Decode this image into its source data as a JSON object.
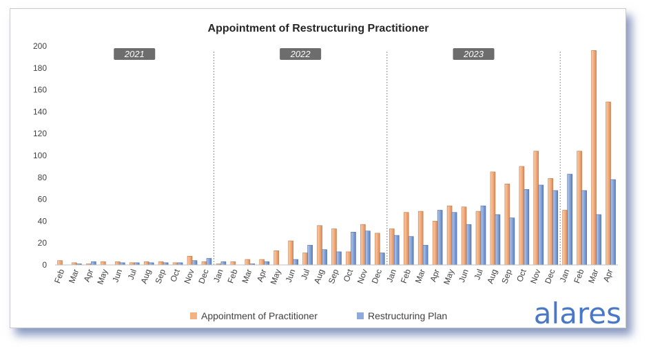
{
  "chart_data": {
    "type": "bar",
    "title": "Appointment of Restructuring Practitioner",
    "xlabel": "",
    "ylabel": "",
    "ylim": [
      0,
      200
    ],
    "yticks": [
      0,
      20,
      40,
      60,
      80,
      100,
      120,
      140,
      160,
      180,
      200
    ],
    "grid": false,
    "legend_position": "bottom",
    "categories": [
      "Feb",
      "Mar",
      "Apr",
      "May",
      "Jun",
      "Jul",
      "Aug",
      "Sep",
      "Oct",
      "Nov",
      "Dec",
      "Jan",
      "Feb",
      "Mar",
      "Apr",
      "May",
      "Jun",
      "Jul",
      "Aug",
      "Sep",
      "Oct",
      "Nov",
      "Dec",
      "Jan",
      "Feb",
      "Mar",
      "Apr",
      "May",
      "Jun",
      "Jul",
      "Aug",
      "Sep",
      "Oct",
      "Nov",
      "Dec",
      "Jan",
      "Feb",
      "Mar",
      "Apr"
    ],
    "year_groups": [
      {
        "label": "2021",
        "start": 0,
        "end": 10
      },
      {
        "label": "2022",
        "start": 11,
        "end": 22
      },
      {
        "label": "2023",
        "start": 23,
        "end": 34
      }
    ],
    "series": [
      {
        "name": "Appointment of Practitioner",
        "color": "#f4b183",
        "values": [
          4,
          2,
          1,
          3,
          3,
          2,
          3,
          3,
          2,
          8,
          3,
          1,
          3,
          5,
          5,
          13,
          22,
          11,
          36,
          33,
          12,
          37,
          29,
          33,
          48,
          49,
          40,
          54,
          53,
          49,
          85,
          74,
          90,
          104,
          79,
          50,
          104,
          196,
          149
        ]
      },
      {
        "name": "Restructuring Plan",
        "color": "#8eaadb",
        "values": [
          0,
          1,
          3,
          0,
          2,
          2,
          2,
          2,
          2,
          4,
          6,
          3,
          0,
          1,
          3,
          0,
          5,
          18,
          14,
          12,
          30,
          31,
          11,
          27,
          26,
          18,
          50,
          48,
          37,
          54,
          46,
          43,
          69,
          73,
          68,
          83,
          68,
          46,
          78
        ]
      }
    ],
    "brand": "alares"
  }
}
